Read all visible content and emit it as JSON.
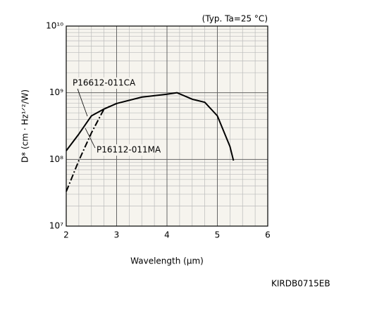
{
  "chart_data": {
    "type": "line",
    "note": "(Typ. Ta=25 °C)",
    "footer": "KIRDB0715EB",
    "x_label": "Wavelength (μm)",
    "y_label": "D* (cm · Hz¹ᐟ²/W)",
    "xlim": [
      2,
      6
    ],
    "xticks": [
      2,
      3,
      4,
      5,
      6
    ],
    "ylim": [
      10000000,
      10000000000
    ],
    "log_y": true,
    "grid": true,
    "yticks": [
      {
        "value": 10000000,
        "label": "10⁷"
      },
      {
        "value": 100000000,
        "label": "10⁸"
      },
      {
        "value": 1000000000,
        "label": "10⁹"
      },
      {
        "value": 10000000000,
        "label": "10¹⁰"
      }
    ],
    "series": [
      {
        "name": "P16612-011CA",
        "color": "#000000",
        "dash": "solid",
        "x": [
          2,
          2.25,
          2.5,
          2.75,
          3,
          3.5,
          4,
          4.2,
          4.5,
          4.75,
          5,
          5.25,
          5.32
        ],
        "values": [
          135000000,
          240000000,
          450000000,
          570000000,
          690000000,
          860000000,
          950000000,
          1000000000,
          800000000,
          720000000,
          450000000,
          156000000,
          96000000
        ]
      },
      {
        "name": "P16112-011MA",
        "color": "#000000",
        "dash": "dashdot",
        "x": [
          2,
          2.25,
          2.5,
          2.75,
          2.85
        ],
        "values": [
          33000000,
          96000000,
          250000000,
          570000000,
          620000000
        ]
      }
    ]
  }
}
